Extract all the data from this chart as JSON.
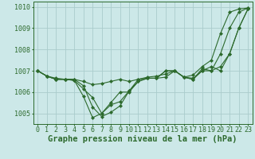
{
  "xlabel": "Graphe pression niveau de la mer (hPa)",
  "x": [
    0,
    1,
    2,
    3,
    4,
    5,
    6,
    7,
    8,
    9,
    10,
    11,
    12,
    13,
    14,
    15,
    16,
    17,
    18,
    19,
    20,
    21,
    22,
    23
  ],
  "line1": [
    1007.0,
    1006.75,
    1006.6,
    1006.6,
    1006.55,
    1005.8,
    1004.8,
    1005.0,
    1005.4,
    1005.55,
    1006.05,
    1006.5,
    1006.65,
    1006.65,
    1007.0,
    1007.0,
    1006.7,
    1006.8,
    1007.2,
    1007.5,
    1008.75,
    1009.75,
    1009.9,
    1009.95
  ],
  "line2": [
    1007.0,
    1006.75,
    1006.6,
    1006.6,
    1006.55,
    1006.15,
    1005.75,
    1005.0,
    1005.5,
    1006.0,
    1006.0,
    1006.5,
    1006.65,
    1006.65,
    1007.0,
    1007.0,
    1006.7,
    1006.6,
    1007.1,
    1007.0,
    1007.8,
    1009.0,
    1009.75,
    1009.95
  ],
  "line3": [
    1007.0,
    1006.75,
    1006.6,
    1006.6,
    1006.6,
    1006.5,
    1006.35,
    1006.4,
    1006.5,
    1006.6,
    1006.5,
    1006.6,
    1006.7,
    1006.75,
    1006.85,
    1007.0,
    1006.7,
    1006.6,
    1007.0,
    1007.0,
    1007.2,
    1007.8,
    1009.0,
    1009.9
  ],
  "line4": [
    1007.0,
    1006.75,
    1006.65,
    1006.6,
    1006.6,
    1006.3,
    1005.3,
    1004.85,
    1005.05,
    1005.35,
    1006.05,
    1006.6,
    1006.65,
    1006.65,
    1006.7,
    1007.0,
    1006.7,
    1006.65,
    1007.0,
    1007.2,
    1007.0,
    1007.8,
    1009.0,
    1009.9
  ],
  "line_color": "#2d6a2d",
  "bg_color": "#cce8e8",
  "grid_color": "#aacccc",
  "ylim": [
    1004.5,
    1010.25
  ],
  "yticks": [
    1005,
    1006,
    1007,
    1008,
    1009,
    1010
  ],
  "marker": "D",
  "markersize": 2.0,
  "linewidth": 0.8,
  "title_fontsize": 7.5,
  "tick_fontsize": 6.0
}
